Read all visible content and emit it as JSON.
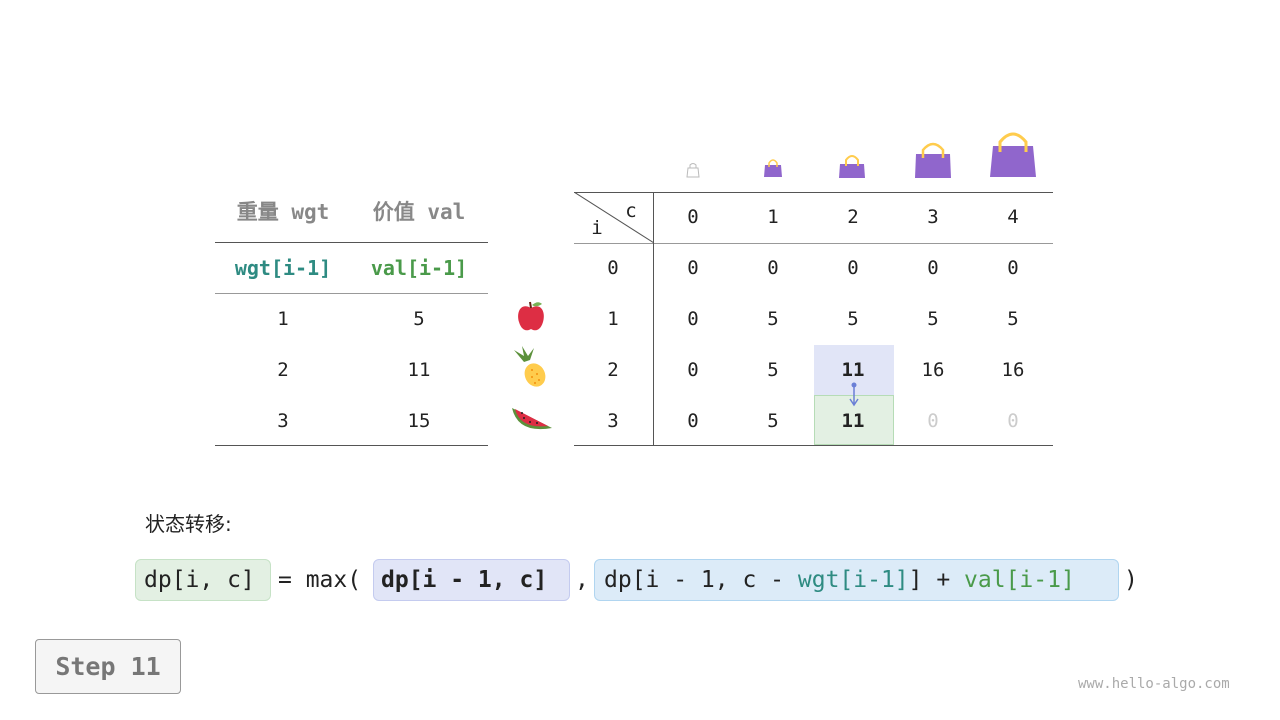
{
  "left_table": {
    "headers": [
      "重量 wgt",
      "价值 val"
    ],
    "subheaders": [
      "wgt[i-1]",
      "val[i-1]"
    ],
    "rows": [
      [
        "1",
        "5"
      ],
      [
        "2",
        "11"
      ],
      [
        "3",
        "15"
      ]
    ]
  },
  "items": [
    "apple-icon",
    "pineapple-icon",
    "watermelon-icon"
  ],
  "dp_table": {
    "corner_i": "i",
    "corner_c": "c",
    "col_headers": [
      "0",
      "1",
      "2",
      "3",
      "4"
    ],
    "row_headers": [
      "0",
      "1",
      "2",
      "3"
    ],
    "rows": [
      [
        "0",
        "0",
        "0",
        "0",
        "0"
      ],
      [
        "0",
        "5",
        "5",
        "5",
        "5"
      ],
      [
        "0",
        "5",
        "11",
        "16",
        "16"
      ],
      [
        "0",
        "5",
        "11",
        "0",
        "0"
      ]
    ]
  },
  "transition_label": "状态转移:",
  "formula": {
    "lhs": "dp[i, c]",
    "eq": "= max(",
    "opt1": "dp[i - 1, c]",
    "comma": ",",
    "opt2_a": "dp[i - 1, c - ",
    "opt2_wgt": "wgt[i-1]",
    "opt2_b": "] + ",
    "opt2_val": "val[i-1]",
    "close": ")"
  },
  "colors": {
    "wgt": "#2e8b82",
    "val": "#4a9a4a",
    "highlight_blue": "#e1e5f7",
    "highlight_green": "#e3f0e3",
    "bag": "#9066cc"
  },
  "step_label": "Step 11",
  "watermark": "www.hello-algo.com"
}
